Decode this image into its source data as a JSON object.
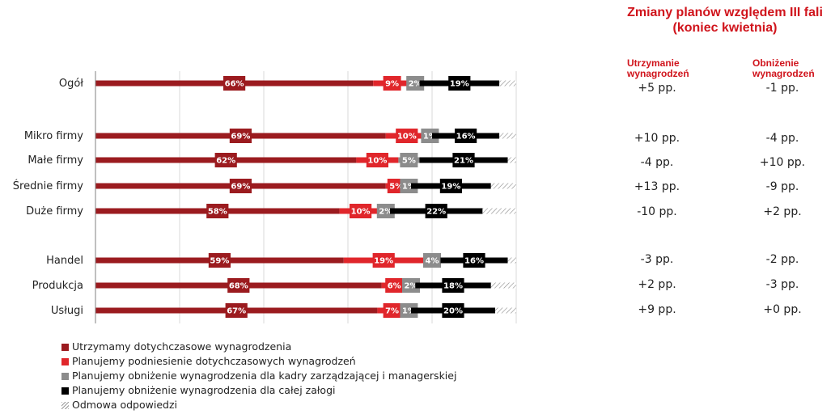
{
  "chart_data": {
    "type": "bar",
    "orientation": "horizontal",
    "stacked": true,
    "xlim": [
      0,
      100
    ],
    "grid": true,
    "categories": [
      "Ogół",
      "Mikro firmy",
      "Małe firmy",
      "Średnie firmy",
      "Duże firmy",
      "Handel",
      "Produkcja",
      "Usługi"
    ],
    "series": [
      {
        "name": "Utrzymamy dotychczasowe wynagrodzenia",
        "color": "#9b1b1f",
        "values": [
          66,
          69,
          62,
          69,
          58,
          59,
          68,
          67
        ],
        "labels": [
          "66%",
          "69%",
          "62%",
          "69%",
          "58%",
          "59%",
          "68%",
          "67%"
        ]
      },
      {
        "name": "Planujemy podniesienie dotychczasowych wynagrodzeń",
        "color": "#e0262b",
        "values": [
          9,
          10,
          10,
          5,
          10,
          19,
          6,
          7
        ],
        "labels": [
          "9%",
          "10%",
          "10%",
          "5%",
          "10%",
          "19%",
          "6%",
          "7%"
        ]
      },
      {
        "name": "Planujemy obniżenie wynagrodzenia dla kadry zarządzającej i managerskiej",
        "color": "#8c8c8c",
        "values": [
          2,
          1,
          5,
          1,
          2,
          4,
          2,
          1
        ],
        "labels": [
          "2%",
          "1%",
          "5%",
          "1%",
          "2%",
          "4%",
          "2%",
          "1%"
        ]
      },
      {
        "name": "Planujemy obniżenie wynagrodzenia dla całej załogi",
        "color": "#000000",
        "values": [
          19,
          16,
          21,
          19,
          22,
          16,
          18,
          20
        ],
        "labels": [
          "19%",
          "16%",
          "21%",
          "19%",
          "22%",
          "16%",
          "18%",
          "20%"
        ]
      },
      {
        "name": "Odmowa odpowiedzi",
        "color": "hatched",
        "values": [
          4,
          4,
          2,
          6,
          8,
          2,
          6,
          5
        ],
        "labels": []
      }
    ],
    "legend_position": "bottom-left"
  },
  "panel": {
    "title_line1": "Zmiany planów względem III fali",
    "title_line2": "(koniec kwietnia)",
    "col1_header": "Utrzymanie\nwynagrodzeń",
    "col2_header": "Obniżenie\nwynagrodzeń",
    "rows": [
      {
        "col1": "+5 pp.",
        "col2": "-1 pp."
      },
      {
        "col1": "+10 pp.",
        "col2": "-4 pp."
      },
      {
        "col1": "-4 pp.",
        "col2": "+10 pp."
      },
      {
        "col1": "+13 pp.",
        "col2": "-9 pp."
      },
      {
        "col1": "-10 pp.",
        "col2": "+2 pp."
      },
      {
        "col1": "-3 pp.",
        "col2": "-2 pp."
      },
      {
        "col1": "+2 pp.",
        "col2": "-3 pp."
      },
      {
        "col1": "+9 pp.",
        "col2": "+0 pp."
      }
    ]
  }
}
